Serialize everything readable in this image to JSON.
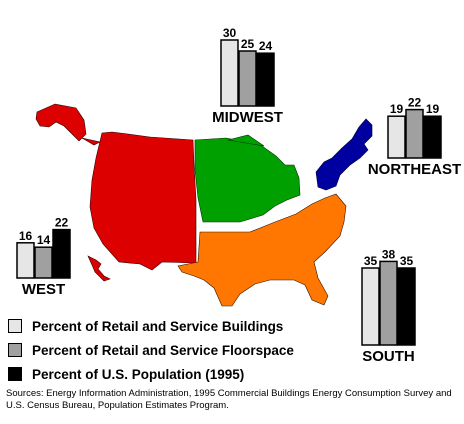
{
  "chart_data": {
    "type": "bar",
    "series": [
      {
        "name": "Percent of Retail and Service Buildings",
        "color": "#e6e6e6"
      },
      {
        "name": "Percent of Retail and Service Floorspace",
        "color": "#a0a0a0"
      },
      {
        "name": "Percent of U.S. Population (1995)",
        "color": "#000000"
      }
    ],
    "regions": [
      {
        "name": "MIDWEST",
        "values": [
          30,
          25,
          24
        ]
      },
      {
        "name": "NORTHEAST",
        "values": [
          19,
          22,
          19
        ]
      },
      {
        "name": "WEST",
        "values": [
          16,
          14,
          22
        ]
      },
      {
        "name": "SOUTH",
        "values": [
          35,
          38,
          35
        ]
      }
    ],
    "map_colors": {
      "WEST": "#dd0000",
      "MIDWEST": "#00a000",
      "NORTHEAST": "#0000a0",
      "SOUTH": "#ff7700"
    },
    "source": "Sources:  Energy Information Administration, 1995 Commercial Buildings Energy Consumption Survey and U.S. Census Bureau, Population Estimates Program."
  }
}
